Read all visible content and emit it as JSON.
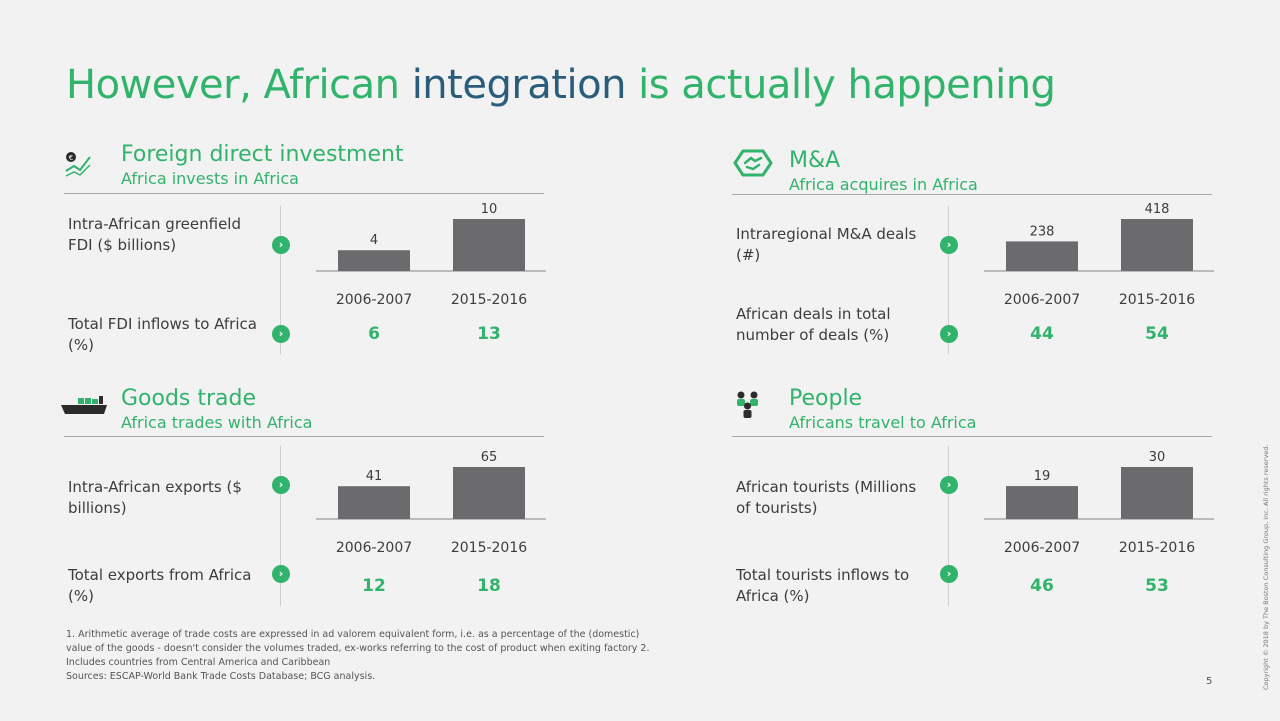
{
  "title": {
    "part1": "However, African",
    "part2": "integration",
    "part3": "is actually happening"
  },
  "colors": {
    "accent": "#32b36b",
    "highlight": "#2a5d7c",
    "bar": "#6b6b6d"
  },
  "panels": {
    "fdi": {
      "icon": "investment-growth-icon",
      "title": "Foreign direct investment",
      "subtitle": "Africa invests in Africa",
      "row1_label": "Intra-African greenfield FDI ($ billions)",
      "row2_label": "Total FDI inflows to Africa (%)",
      "row2_values": [
        "6",
        "13"
      ]
    },
    "ma": {
      "icon": "handshake-icon",
      "title": "M&A",
      "subtitle": "Africa acquires in Africa",
      "row1_label": "Intraregional M&A deals (#)",
      "row2_label": "African deals in total number of deals (%)",
      "row2_values": [
        "44",
        "54"
      ]
    },
    "trade": {
      "icon": "cargo-ship-icon",
      "title": "Goods trade",
      "subtitle": "Africa trades with Africa",
      "row1_label": "Intra-African exports ($ billions)",
      "row2_label": "Total exports from Africa (%)",
      "row2_values": [
        "12",
        "18"
      ]
    },
    "people": {
      "icon": "people-group-icon",
      "title": "People",
      "subtitle": "Africans travel to Africa",
      "row1_label": "African tourists (Millions of tourists)",
      "row2_label": "Total tourists inflows to Africa (%)",
      "row2_values": [
        "46",
        "53"
      ]
    }
  },
  "chart_data": [
    {
      "type": "bar",
      "categories": [
        "2006-2007",
        "2015-2016"
      ],
      "values": [
        4,
        10
      ],
      "data_labels": [
        "4",
        "10"
      ]
    },
    {
      "type": "bar",
      "categories": [
        "2006-2007",
        "2015-2016"
      ],
      "values": [
        238,
        418
      ],
      "data_labels": [
        "238",
        "418"
      ]
    },
    {
      "type": "bar",
      "categories": [
        "2006-2007",
        "2015-2016"
      ],
      "values": [
        41,
        65
      ],
      "data_labels": [
        "41",
        "65"
      ]
    },
    {
      "type": "bar",
      "categories": [
        "2006-2007",
        "2015-2016"
      ],
      "values": [
        19,
        30
      ],
      "data_labels": [
        "19",
        "30"
      ]
    }
  ],
  "footnote": {
    "line1": "1. Arithmetic average of trade costs are expressed in ad valorem equivalent form, i.e. as a percentage of the (domestic)",
    "line2": "value of the goods - doesn't consider the volumes traded, ex-works referring to the cost of product when exiting factory 2.",
    "line3": "Includes countries from Central America and Caribbean",
    "line4": "Sources: ESCAP-World Bank Trade Costs Database; BCG analysis."
  },
  "page_number": "5",
  "copyright": "Copyright © 2018 by The Boston Consulting Group, Inc. All rights reserved."
}
